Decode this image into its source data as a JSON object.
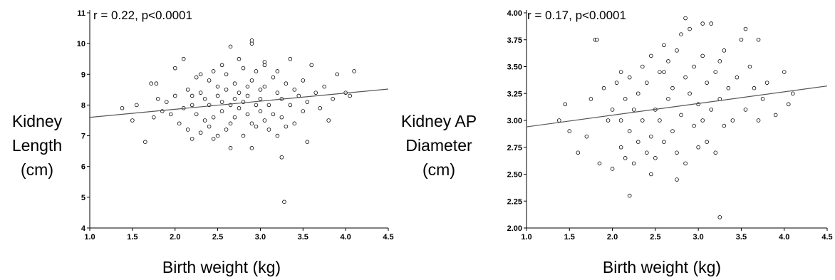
{
  "charts": [
    {
      "annotation": "r = 0.22, p<0.0001",
      "ylabel_lines": [
        "Kidney",
        "Length",
        "(cm)"
      ],
      "xlabel": "Birth weight (kg)",
      "yticks": [
        "4",
        "5",
        "6",
        "7",
        "8",
        "9",
        "10",
        "11"
      ],
      "xticks": [
        "1.0",
        "1.5",
        "2.0",
        "2.5",
        "3.0",
        "3.5",
        "4.0",
        "4.5"
      ]
    },
    {
      "annotation": "r = 0.17, p<0.0001",
      "ylabel_lines": [
        "Kidney AP",
        "Diameter",
        "(cm)"
      ],
      "xlabel": "Birth weight (kg)",
      "yticks": [
        "2.00",
        "2.25",
        "2.50",
        "2.75",
        "3.00",
        "3.25",
        "3.50",
        "3.75",
        "4.00"
      ],
      "xticks": [
        "1.0",
        "1.5",
        "2.0",
        "2.5",
        "3.0",
        "3.5",
        "4.0",
        "4.5"
      ]
    }
  ],
  "chart_data": [
    {
      "type": "scatter",
      "title": "",
      "annotation": "r = 0.22, p<0.0001",
      "xlabel": "Birth weight (kg)",
      "ylabel": "Kidney Length (cm)",
      "xlim": [
        1.0,
        4.5
      ],
      "ylim": [
        4,
        11
      ],
      "grid": false,
      "regression_line": {
        "x": [
          1.0,
          4.5
        ],
        "y": [
          7.6,
          8.52
        ]
      },
      "x": [
        1.38,
        1.5,
        1.55,
        1.65,
        1.72,
        1.75,
        1.8,
        1.85,
        1.9,
        1.95,
        2.0,
        2.0,
        2.05,
        2.1,
        2.1,
        2.15,
        2.15,
        2.2,
        2.2,
        2.25,
        2.25,
        2.3,
        2.3,
        2.3,
        2.35,
        2.35,
        2.4,
        2.4,
        2.4,
        2.45,
        2.45,
        2.5,
        2.5,
        2.5,
        2.55,
        2.55,
        2.55,
        2.6,
        2.6,
        2.6,
        2.65,
        2.65,
        2.65,
        2.7,
        2.7,
        2.7,
        2.75,
        2.75,
        2.75,
        2.8,
        2.8,
        2.8,
        2.85,
        2.85,
        2.85,
        2.9,
        2.9,
        2.9,
        2.95,
        2.95,
        2.95,
        3.0,
        3.0,
        3.0,
        3.05,
        3.05,
        3.05,
        3.1,
        3.1,
        3.15,
        3.15,
        3.2,
        3.2,
        3.2,
        3.25,
        3.25,
        3.3,
        3.3,
        3.35,
        3.35,
        3.4,
        3.4,
        3.45,
        3.5,
        3.5,
        3.55,
        3.6,
        3.65,
        3.7,
        3.75,
        3.8,
        3.85,
        3.9,
        4.0,
        4.05,
        4.1,
        2.45,
        2.65,
        2.9,
        3.25,
        3.28,
        2.9,
        3.05,
        2.2,
        3.55,
        1.78
      ],
      "y": [
        7.9,
        7.5,
        8.0,
        6.8,
        8.7,
        7.6,
        8.2,
        7.8,
        8.1,
        7.7,
        9.2,
        8.3,
        7.4,
        9.5,
        7.9,
        8.5,
        7.2,
        8.0,
        6.9,
        8.9,
        7.7,
        8.4,
        7.1,
        9.0,
        8.2,
        7.5,
        8.8,
        7.3,
        8.0,
        9.1,
        7.6,
        8.3,
        7.0,
        8.6,
        9.3,
        7.8,
        8.1,
        8.5,
        7.2,
        9.0,
        8.0,
        7.4,
        9.9,
        8.7,
        7.6,
        8.2,
        9.5,
        7.9,
        8.4,
        8.1,
        7.0,
        9.2,
        8.6,
        7.7,
        8.3,
        10.0,
        7.4,
        8.8,
        8.0,
        7.3,
        9.1,
        8.5,
        7.8,
        8.2,
        9.3,
        7.5,
        8.6,
        8.0,
        7.2,
        8.9,
        7.7,
        8.4,
        7.0,
        9.1,
        8.2,
        7.6,
        8.7,
        7.3,
        9.5,
        8.0,
        8.5,
        7.4,
        8.3,
        8.8,
        7.8,
        8.1,
        9.3,
        8.4,
        7.9,
        8.6,
        7.5,
        8.2,
        9.0,
        8.4,
        8.3,
        9.1,
        6.9,
        6.6,
        6.6,
        6.3,
        4.85,
        10.1,
        9.4,
        8.3,
        6.8,
        8.7
      ]
    },
    {
      "type": "scatter",
      "title": "",
      "annotation": "r = 0.17, p<0.0001",
      "xlabel": "Birth weight (kg)",
      "ylabel": "Kidney AP Diameter (cm)",
      "xlim": [
        1.0,
        4.5
      ],
      "ylim": [
        2.0,
        4.0
      ],
      "grid": false,
      "regression_line": {
        "x": [
          1.0,
          4.5
        ],
        "y": [
          2.94,
          3.32
        ]
      },
      "x": [
        1.38,
        1.45,
        1.5,
        1.6,
        1.7,
        1.75,
        1.8,
        1.85,
        1.9,
        1.95,
        2.0,
        2.0,
        2.05,
        2.1,
        2.1,
        2.15,
        2.15,
        2.2,
        2.2,
        2.25,
        2.25,
        2.3,
        2.3,
        2.35,
        2.35,
        2.4,
        2.4,
        2.45,
        2.45,
        2.5,
        2.5,
        2.55,
        2.55,
        2.6,
        2.6,
        2.65,
        2.65,
        2.7,
        2.7,
        2.75,
        2.75,
        2.8,
        2.8,
        2.85,
        2.85,
        2.9,
        2.9,
        2.95,
        2.95,
        3.0,
        3.0,
        3.05,
        3.05,
        3.1,
        3.1,
        3.15,
        3.15,
        3.2,
        3.2,
        3.25,
        3.25,
        3.3,
        3.3,
        3.35,
        3.4,
        3.45,
        3.5,
        3.55,
        3.6,
        3.65,
        3.7,
        3.75,
        3.8,
        3.9,
        4.0,
        4.05,
        4.1,
        2.2,
        2.45,
        2.75,
        3.25,
        2.85,
        3.05,
        3.55,
        3.7,
        1.82,
        2.1,
        2.6
      ],
      "y": [
        3.0,
        3.15,
        2.9,
        2.7,
        2.85,
        3.2,
        3.75,
        2.6,
        3.3,
        3.0,
        2.55,
        3.1,
        3.35,
        2.75,
        3.0,
        3.2,
        2.65,
        3.4,
        2.9,
        3.1,
        2.6,
        3.25,
        2.8,
        3.5,
        3.0,
        2.7,
        3.35,
        3.6,
        2.85,
        3.1,
        2.65,
        3.45,
        3.0,
        3.7,
        2.8,
        3.2,
        3.55,
        2.9,
        3.3,
        3.65,
        2.7,
        3.8,
        3.05,
        3.4,
        2.6,
        3.25,
        3.85,
        2.95,
        3.5,
        3.15,
        2.75,
        3.6,
        3.0,
        3.35,
        2.8,
        3.9,
        3.1,
        3.45,
        2.7,
        3.2,
        3.55,
        2.95,
        3.65,
        3.3,
        3.0,
        3.4,
        3.75,
        3.1,
        3.5,
        3.3,
        3.0,
        3.2,
        3.35,
        3.05,
        3.45,
        3.15,
        3.25,
        2.3,
        2.5,
        2.45,
        2.1,
        3.95,
        3.9,
        3.85,
        3.75,
        3.75,
        3.45,
        3.45
      ]
    }
  ]
}
